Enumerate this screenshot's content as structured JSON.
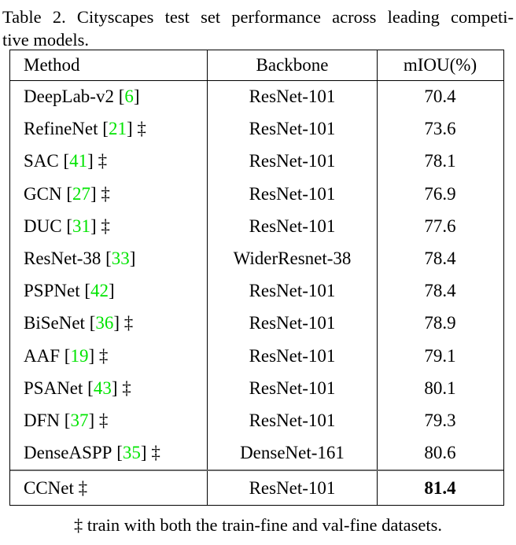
{
  "caption": {
    "line1": "Table 2. Cityscapes test set performance across leading competi-",
    "line2": "tive models."
  },
  "table": {
    "headers": [
      "Method",
      "Backbone",
      "mIOU(%)"
    ],
    "citation_color": "#00e400",
    "dagger_symbol": "‡",
    "body_rows": [
      {
        "method": "DeepLab-v2",
        "cite": "6",
        "dagger": false,
        "backbone": "ResNet-101",
        "miou": "70.4"
      },
      {
        "method": "RefineNet",
        "cite": "21",
        "dagger": true,
        "backbone": "ResNet-101",
        "miou": "73.6"
      },
      {
        "method": "SAC",
        "cite": "41",
        "dagger": true,
        "backbone": "ResNet-101",
        "miou": "78.1"
      },
      {
        "method": "GCN",
        "cite": "27",
        "dagger": true,
        "backbone": "ResNet-101",
        "miou": "76.9"
      },
      {
        "method": "DUC",
        "cite": "31",
        "dagger": true,
        "backbone": "ResNet-101",
        "miou": "77.6"
      },
      {
        "method": "ResNet-38",
        "cite": "33",
        "dagger": false,
        "backbone": "WiderResnet-38",
        "miou": "78.4"
      },
      {
        "method": "PSPNet",
        "cite": "42",
        "dagger": false,
        "backbone": "ResNet-101",
        "miou": "78.4"
      },
      {
        "method": "BiSeNet",
        "cite": "36",
        "dagger": true,
        "backbone": "ResNet-101",
        "miou": "78.9"
      },
      {
        "method": "AAF",
        "cite": "19",
        "dagger": true,
        "backbone": "ResNet-101",
        "miou": "79.1"
      },
      {
        "method": "PSANet",
        "cite": "43",
        "dagger": true,
        "backbone": "ResNet-101",
        "miou": "80.1"
      },
      {
        "method": "DFN",
        "cite": "37",
        "dagger": true,
        "backbone": "ResNet-101",
        "miou": "79.3"
      },
      {
        "method": "DenseASPP",
        "cite": "35",
        "dagger": true,
        "backbone": "DenseNet-161",
        "miou": "80.6"
      }
    ],
    "final_row": {
      "method": "CCNet",
      "cite": null,
      "dagger": true,
      "backbone": "ResNet-101",
      "miou": "81.4",
      "bold_miou": true
    }
  },
  "footnote": {
    "symbol": "‡",
    "text": "train with both the train-fine and val-fine datasets."
  }
}
